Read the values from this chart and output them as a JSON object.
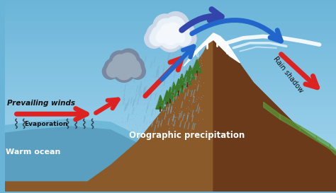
{
  "bg_sky_top": "#6ab4d8",
  "bg_sky_bottom": "#a8d8f0",
  "ocean_color": "#5a9fc0",
  "ocean_dark": "#3a7a9a",
  "mountain_color": "#8B5A2B",
  "mountain_dark": "#6B3A1B",
  "snow_color": "#ffffff",
  "snow_shadow": "#d0dce8",
  "grass_left": "#3a7a2a",
  "grass_right": "#5a9a3a",
  "cloud_dark": "#8899aa",
  "cloud_mid": "#aabbc8",
  "cloud_white": "#ddeeff",
  "rain_color": "#7ab0cc",
  "rain_dot": "#88aacc",
  "arrow_red": "#dd2222",
  "arrow_blue_dark": "#3344aa",
  "arrow_blue_mid": "#2266cc",
  "text_dark": "#111111",
  "text_white": "#ffffff",
  "text_labels": {
    "prevailing_winds": "Prevailing winds",
    "evaporation": "Evaporation",
    "warm_ocean": "Warm ocean",
    "orographic": "Orographic precipitation",
    "rain_shadow": "Rain shadow"
  },
  "figsize": [
    4.74,
    2.73
  ],
  "dpi": 100
}
